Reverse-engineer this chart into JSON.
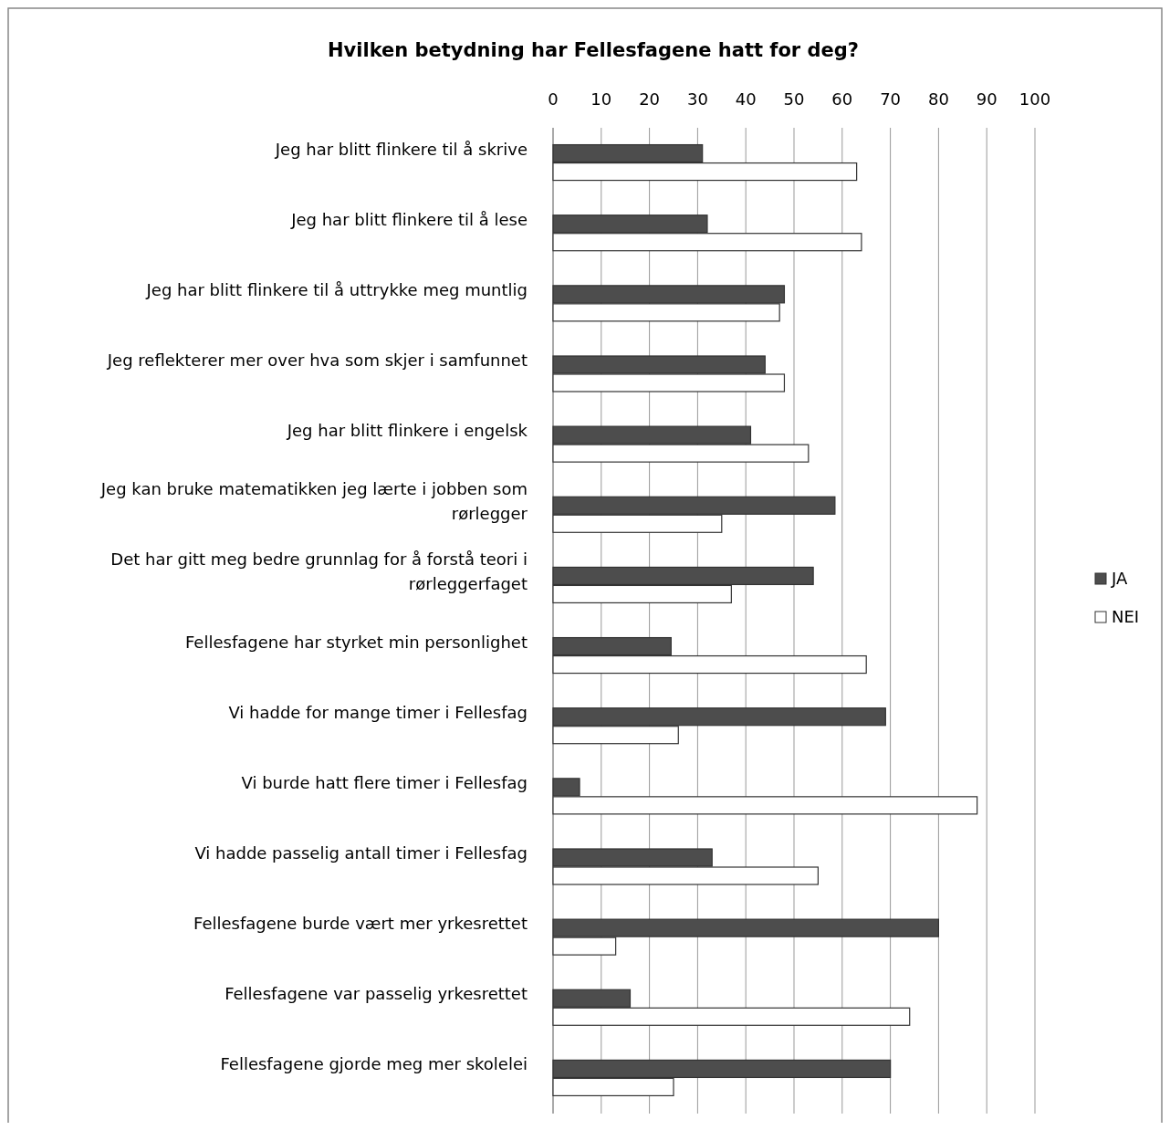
{
  "chart_data": {
    "type": "bar",
    "orientation": "horizontal",
    "title": "Hvilken betydning har Fellesfagene hatt for deg?",
    "categories": [
      "Jeg har blitt flinkere til å skrive",
      "Jeg har blitt flinkere til å lese",
      "Jeg har blitt flinkere til å uttrykke meg muntlig",
      "Jeg reflekterer mer over hva som skjer i samfunnet",
      "Jeg har blitt flinkere i engelsk",
      "Jeg kan bruke matematikken jeg lærte i jobben som rørlegger",
      "Det har gitt meg bedre grunnlag for å forstå teori i rørleggerfaget",
      "Fellesfagene har styrket min personlighet",
      "Vi hadde for mange timer i Fellesfag",
      "Vi burde hatt flere timer i Fellesfag",
      "Vi hadde passelig antall timer i Fellesfag",
      "Fellesfagene burde vært mer yrkesrettet",
      "Fellesfagene var passelig yrkesrettet",
      "Fellesfagene gjorde meg mer skolelei"
    ],
    "series": [
      {
        "name": "JA",
        "color": "#4d4d4d",
        "values": [
          31,
          32,
          48,
          44,
          41,
          58.5,
          54,
          24.5,
          69,
          5.5,
          33,
          80,
          16,
          70
        ]
      },
      {
        "name": "NEI",
        "color": "#ffffff",
        "values": [
          63,
          64,
          47,
          48,
          53,
          35,
          37,
          65,
          26,
          88,
          55,
          13,
          74,
          25
        ]
      }
    ],
    "xlim": [
      0,
      100
    ],
    "xticks": [
      0,
      10,
      20,
      30,
      40,
      50,
      60,
      70,
      80,
      90,
      100
    ],
    "grid": "x",
    "legend": "right"
  }
}
